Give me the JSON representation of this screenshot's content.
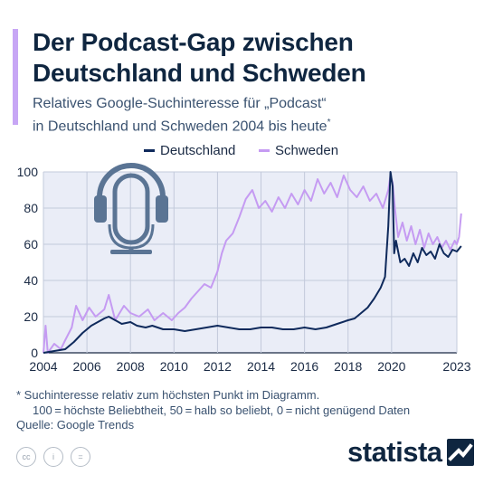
{
  "header": {
    "title_line1": "Der Podcast-Gap zwischen",
    "title_line2": "Deutschland und Schweden",
    "subtitle_line1": "Relatives Google-Suchinteresse für „Podcast“",
    "subtitle_line2": "in Deutschland und Schweden 2004 bis heute",
    "subtitle_mark": "*"
  },
  "colors": {
    "deutschland": "#0f2a5c",
    "schweden": "#c59bf2",
    "plot_background": "#eaedf7",
    "accent": "#c7a6f5",
    "icon": "#5a7494"
  },
  "icon": "podcast-microphone-headphones-icon",
  "chart_data": {
    "type": "line",
    "legend_position": "top-center",
    "grid": true,
    "xlim": [
      2004,
      2023
    ],
    "ylim": [
      0,
      100
    ],
    "yticks": [
      0,
      20,
      40,
      60,
      80,
      100
    ],
    "xtick_labels": [
      "2004",
      "2006",
      "2008",
      "2010",
      "2012",
      "2014",
      "2016",
      "2018",
      "2020",
      "2023"
    ],
    "xtick_values": [
      2004,
      2006,
      2008,
      2010,
      2012,
      2014,
      2016,
      2018,
      2020,
      2023
    ],
    "series": [
      {
        "name": "Deutschland",
        "points": [
          [
            2004.0,
            0
          ],
          [
            2004.5,
            1
          ],
          [
            2005.0,
            2
          ],
          [
            2005.4,
            6
          ],
          [
            2005.8,
            11
          ],
          [
            2006.2,
            15
          ],
          [
            2006.5,
            17
          ],
          [
            2006.8,
            19
          ],
          [
            2007.0,
            20
          ],
          [
            2007.3,
            18
          ],
          [
            2007.6,
            16
          ],
          [
            2008.0,
            17
          ],
          [
            2008.3,
            15
          ],
          [
            2008.7,
            14
          ],
          [
            2009.0,
            15
          ],
          [
            2009.5,
            13
          ],
          [
            2010.0,
            13
          ],
          [
            2010.5,
            12
          ],
          [
            2011.0,
            13
          ],
          [
            2011.5,
            14
          ],
          [
            2012.0,
            15
          ],
          [
            2012.5,
            14
          ],
          [
            2013.0,
            13
          ],
          [
            2013.5,
            13
          ],
          [
            2014.0,
            14
          ],
          [
            2014.5,
            14
          ],
          [
            2015.0,
            13
          ],
          [
            2015.5,
            13
          ],
          [
            2016.0,
            14
          ],
          [
            2016.5,
            13
          ],
          [
            2017.0,
            14
          ],
          [
            2017.5,
            16
          ],
          [
            2018.0,
            18
          ],
          [
            2018.3,
            19
          ],
          [
            2018.6,
            22
          ],
          [
            2018.9,
            25
          ],
          [
            2019.2,
            30
          ],
          [
            2019.5,
            36
          ],
          [
            2019.7,
            42
          ],
          [
            2019.85,
            70
          ],
          [
            2019.95,
            100
          ],
          [
            2020.05,
            92
          ],
          [
            2020.12,
            55
          ],
          [
            2020.2,
            62
          ],
          [
            2020.4,
            50
          ],
          [
            2020.6,
            52
          ],
          [
            2020.8,
            48
          ],
          [
            2021.0,
            55
          ],
          [
            2021.2,
            50
          ],
          [
            2021.4,
            58
          ],
          [
            2021.6,
            54
          ],
          [
            2021.8,
            56
          ],
          [
            2022.0,
            52
          ],
          [
            2022.2,
            60
          ],
          [
            2022.4,
            55
          ],
          [
            2022.6,
            53
          ],
          [
            2022.8,
            57
          ],
          [
            2023.0,
            56
          ],
          [
            2023.2,
            59
          ]
        ]
      },
      {
        "name": "Schweden",
        "points": [
          [
            2004.0,
            0
          ],
          [
            2004.1,
            15
          ],
          [
            2004.2,
            0
          ],
          [
            2004.5,
            5
          ],
          [
            2004.8,
            2
          ],
          [
            2005.0,
            7
          ],
          [
            2005.3,
            14
          ],
          [
            2005.5,
            26
          ],
          [
            2005.8,
            18
          ],
          [
            2006.1,
            25
          ],
          [
            2006.4,
            20
          ],
          [
            2006.8,
            24
          ],
          [
            2007.0,
            32
          ],
          [
            2007.3,
            18
          ],
          [
            2007.7,
            26
          ],
          [
            2008.0,
            22
          ],
          [
            2008.4,
            20
          ],
          [
            2008.8,
            24
          ],
          [
            2009.1,
            18
          ],
          [
            2009.5,
            22
          ],
          [
            2009.9,
            18
          ],
          [
            2010.2,
            22
          ],
          [
            2010.5,
            25
          ],
          [
            2010.8,
            30
          ],
          [
            2011.1,
            34
          ],
          [
            2011.4,
            38
          ],
          [
            2011.7,
            36
          ],
          [
            2012.0,
            45
          ],
          [
            2012.2,
            55
          ],
          [
            2012.4,
            62
          ],
          [
            2012.7,
            66
          ],
          [
            2013.0,
            75
          ],
          [
            2013.3,
            85
          ],
          [
            2013.6,
            90
          ],
          [
            2013.9,
            80
          ],
          [
            2014.2,
            84
          ],
          [
            2014.5,
            78
          ],
          [
            2014.8,
            86
          ],
          [
            2015.1,
            80
          ],
          [
            2015.4,
            88
          ],
          [
            2015.7,
            82
          ],
          [
            2016.0,
            90
          ],
          [
            2016.3,
            84
          ],
          [
            2016.6,
            96
          ],
          [
            2016.9,
            88
          ],
          [
            2017.2,
            94
          ],
          [
            2017.5,
            86
          ],
          [
            2017.8,
            98
          ],
          [
            2018.1,
            90
          ],
          [
            2018.4,
            86
          ],
          [
            2018.7,
            92
          ],
          [
            2019.0,
            84
          ],
          [
            2019.3,
            88
          ],
          [
            2019.6,
            80
          ],
          [
            2019.85,
            90
          ],
          [
            2019.95,
            98
          ],
          [
            2020.05,
            94
          ],
          [
            2020.15,
            80
          ],
          [
            2020.3,
            64
          ],
          [
            2020.5,
            72
          ],
          [
            2020.7,
            62
          ],
          [
            2020.9,
            70
          ],
          [
            2021.1,
            60
          ],
          [
            2021.3,
            68
          ],
          [
            2021.5,
            58
          ],
          [
            2021.7,
            66
          ],
          [
            2021.9,
            60
          ],
          [
            2022.1,
            64
          ],
          [
            2022.3,
            58
          ],
          [
            2022.5,
            62
          ],
          [
            2022.7,
            57
          ],
          [
            2022.9,
            62
          ],
          [
            2023.0,
            60
          ],
          [
            2023.1,
            64
          ],
          [
            2023.2,
            77
          ]
        ]
      }
    ]
  },
  "footer": {
    "footnote_line1": "* Suchinteresse relativ zum höchsten Punkt im Diagramm.",
    "footnote_line2": "100 = höchste Beliebtheit, 50 = halb so beliebt, 0 = nicht genügend Daten",
    "source": "Quelle: Google Trends",
    "cc_label": "cc",
    "by_label": "i",
    "nd_label": "=",
    "brand": "statista"
  }
}
